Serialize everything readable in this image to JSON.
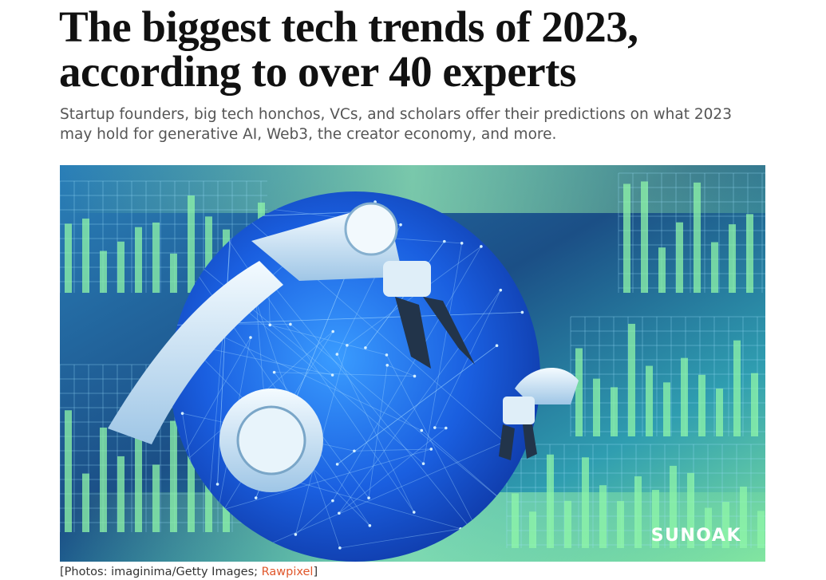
{
  "article": {
    "title_lines": [
      "The biggest tech trends of 2023,",
      "according to over 40 experts"
    ],
    "subtitle_lines": [
      "Startup founders, big tech honchos, VCs, and scholars offer their predictions on what 2023",
      "may hold for generative AI, Web3, the creator economy, and more."
    ],
    "image_watermark": "SUNOAK",
    "caption": {
      "prefix": "[Photos: imaginima/Getty Images; ",
      "link": "Rawpixel",
      "suffix": "]"
    }
  }
}
